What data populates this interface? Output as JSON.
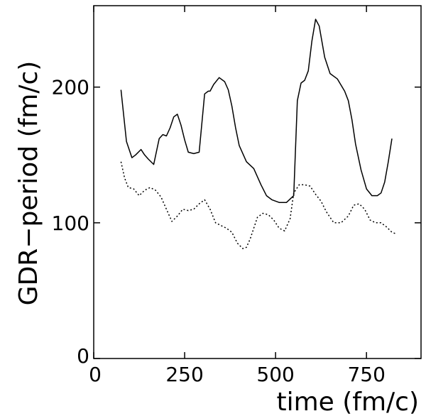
{
  "chart_data": {
    "type": "line",
    "title": "",
    "xlabel": "time (fm/c)",
    "ylabel": "GDR−period (fm/c)",
    "xlim": [
      0,
      900
    ],
    "ylim": [
      0,
      260
    ],
    "x_ticks": [
      0,
      250,
      500,
      750
    ],
    "y_ticks": [
      0,
      100,
      200
    ],
    "x_tick_labels": [
      "0",
      "250",
      "500",
      "750"
    ],
    "y_tick_labels": [
      "0",
      "100",
      "200"
    ],
    "grid": false,
    "series": [
      {
        "style": "solid",
        "color": "#000000",
        "x": [
          75,
          90,
          105,
          115,
          130,
          140,
          150,
          165,
          180,
          190,
          200,
          210,
          220,
          230,
          240,
          250,
          260,
          275,
          290,
          305,
          315,
          320,
          330,
          345,
          360,
          370,
          380,
          390,
          400,
          420,
          440,
          460,
          475,
          490,
          510,
          530,
          550,
          560,
          570,
          580,
          590,
          600,
          610,
          620,
          635,
          650,
          670,
          690,
          700,
          710,
          720,
          735,
          750,
          765,
          780,
          790,
          800,
          810,
          820
        ],
        "y": [
          198,
          160,
          148,
          150,
          154,
          150,
          147,
          143,
          162,
          165,
          164,
          170,
          178,
          180,
          172,
          161,
          152,
          151,
          152,
          195,
          197,
          197,
          202,
          207,
          204,
          198,
          186,
          170,
          157,
          145,
          140,
          128,
          120,
          117,
          115,
          115,
          120,
          190,
          203,
          205,
          212,
          234,
          250,
          245,
          222,
          210,
          206,
          197,
          190,
          176,
          158,
          139,
          125,
          120,
          120,
          122,
          130,
          145,
          162
        ]
      },
      {
        "style": "dotted",
        "color": "#000000",
        "x": [
          75,
          85,
          95,
          110,
          125,
          140,
          155,
          170,
          185,
          200,
          215,
          230,
          245,
          260,
          275,
          290,
          305,
          320,
          335,
          350,
          365,
          380,
          395,
          410,
          420,
          430,
          440,
          450,
          465,
          480,
          495,
          510,
          525,
          540,
          550,
          565,
          580,
          595,
          610,
          625,
          640,
          660,
          680,
          700,
          715,
          730,
          745,
          760,
          775,
          790,
          805,
          820,
          830
        ],
        "y": [
          145,
          133,
          126,
          125,
          120,
          124,
          126,
          124,
          119,
          110,
          101,
          105,
          110,
          109,
          110,
          114,
          117,
          110,
          100,
          98,
          96,
          93,
          85,
          81,
          82,
          88,
          96,
          104,
          107,
          106,
          102,
          96,
          94,
          103,
          122,
          128,
          128,
          127,
          121,
          116,
          108,
          100,
          100,
          105,
          113,
          114,
          110,
          102,
          100,
          100,
          97,
          93,
          92
        ]
      }
    ]
  }
}
